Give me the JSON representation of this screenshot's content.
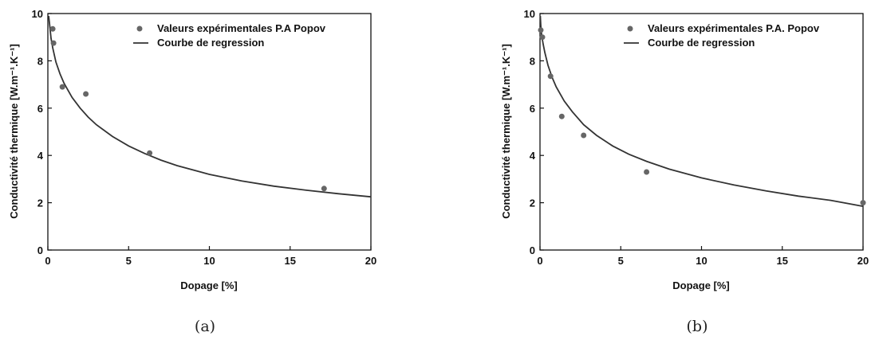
{
  "chart_data": [
    {
      "type": "scatter",
      "caption": "(a)",
      "title": "",
      "xlabel": "Dopage [%]",
      "ylabel": "Conductivité thermique [W.m⁻¹.K⁻¹]",
      "xlim": [
        0,
        20
      ],
      "ylim": [
        0,
        10
      ],
      "xticks": [
        0,
        5,
        10,
        15,
        20
      ],
      "yticks": [
        0,
        2,
        4,
        6,
        8,
        10
      ],
      "grid": false,
      "legend_position": "top-right",
      "series": [
        {
          "name": "Valeurs expérimentales P.A Popov",
          "kind": "scatter",
          "color": "#666666",
          "x": [
            0.3,
            0.35,
            0.9,
            2.35,
            6.3,
            17.1
          ],
          "y": [
            9.35,
            8.75,
            6.9,
            6.6,
            4.1,
            2.6
          ]
        },
        {
          "name": "Courbe de regression",
          "kind": "line",
          "color": "#333333",
          "x": [
            0.05,
            0.1,
            0.2,
            0.3,
            0.5,
            0.75,
            1.0,
            1.5,
            2.0,
            2.5,
            3.0,
            4.0,
            5.0,
            6.0,
            7.0,
            8.0,
            10.0,
            12.0,
            14.0,
            16.0,
            18.0,
            20.0
          ],
          "y": [
            9.9,
            9.6,
            8.95,
            8.55,
            7.95,
            7.45,
            7.05,
            6.45,
            6.0,
            5.62,
            5.3,
            4.8,
            4.4,
            4.08,
            3.8,
            3.57,
            3.2,
            2.92,
            2.7,
            2.53,
            2.38,
            2.25
          ]
        }
      ]
    },
    {
      "type": "scatter",
      "caption": "(b)",
      "title": "",
      "xlabel": "Dopage [%]",
      "ylabel": "Conductivité thermique [W.m⁻¹.K⁻¹]",
      "xlim": [
        0,
        20
      ],
      "ylim": [
        0,
        10
      ],
      "xticks": [
        0,
        5,
        10,
        15,
        20
      ],
      "yticks": [
        0,
        2,
        4,
        6,
        8,
        10
      ],
      "grid": false,
      "legend_position": "top-right",
      "series": [
        {
          "name": "Valeurs expérimentales P.A. Popov",
          "kind": "scatter",
          "color": "#666666",
          "x": [
            0.05,
            0.15,
            0.65,
            1.35,
            2.7,
            6.6,
            20.0
          ],
          "y": [
            9.3,
            9.0,
            7.35,
            5.65,
            4.85,
            3.3,
            2.0
          ]
        },
        {
          "name": "Courbe de regression",
          "kind": "line",
          "color": "#333333",
          "x": [
            0.02,
            0.05,
            0.1,
            0.2,
            0.3,
            0.5,
            0.75,
            1.0,
            1.5,
            2.0,
            2.7,
            3.5,
            4.5,
            5.5,
            6.6,
            8.0,
            10.0,
            12.0,
            14.0,
            16.0,
            18.0,
            20.0
          ],
          "y": [
            9.9,
            9.5,
            9.1,
            8.7,
            8.35,
            7.8,
            7.3,
            6.9,
            6.3,
            5.85,
            5.3,
            4.85,
            4.4,
            4.05,
            3.75,
            3.42,
            3.05,
            2.75,
            2.5,
            2.28,
            2.1,
            1.85
          ]
        }
      ]
    }
  ]
}
